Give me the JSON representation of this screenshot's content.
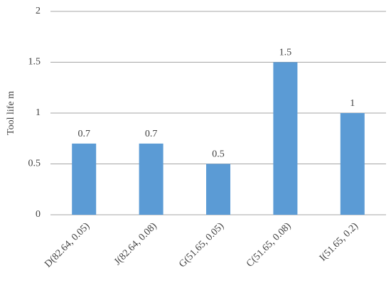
{
  "chart_data": {
    "type": "bar",
    "y_label": "Tool life m",
    "categories": [
      "D(82.64, 0.05)",
      "J(82.64, 0.08)",
      "G(51.65, 0.05)",
      "C(51.65, 0.08)",
      "I(51.65, 0.2)"
    ],
    "values": [
      0.7,
      0.7,
      0.5,
      1.5,
      1
    ],
    "color": "#5b9bd5",
    "ylim": [
      0,
      2
    ],
    "yticks": [
      0,
      0.5,
      1,
      1.5,
      2
    ],
    "grid": true
  }
}
